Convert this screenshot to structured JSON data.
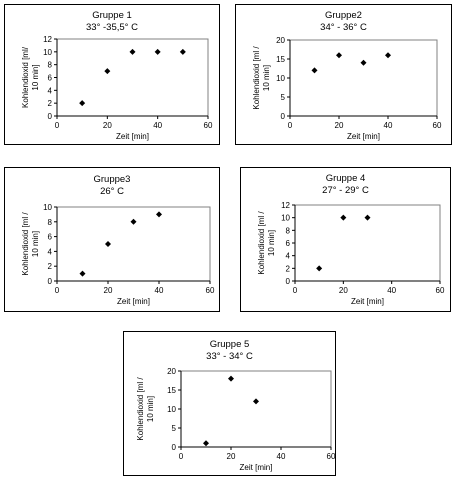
{
  "chart_data": [
    {
      "type": "scatter",
      "title": "Gruppe 1",
      "subtitle": "33° -35,5° C",
      "xlabel": "Zeit [min]",
      "ylabel": "Kohlendioxid [ml/ 10 min]",
      "xlim": [
        0,
        60
      ],
      "ylim": [
        0,
        12
      ],
      "xticks": [
        0,
        20,
        40,
        60
      ],
      "yticks": [
        0,
        2,
        4,
        6,
        8,
        10,
        12
      ],
      "x": [
        10,
        20,
        30,
        40,
        50
      ],
      "y": [
        2,
        7,
        10,
        10,
        10
      ],
      "grid": false,
      "legend": "none"
    },
    {
      "type": "scatter",
      "title": "Gruppe2",
      "subtitle": "34° - 36° C",
      "xlabel": "Zeit [min]",
      "ylabel": "Kohlendioxid [ml / 10 min]",
      "xlim": [
        0,
        60
      ],
      "ylim": [
        0,
        20
      ],
      "xticks": [
        0,
        20,
        40,
        60
      ],
      "yticks": [
        0,
        5,
        10,
        15,
        20
      ],
      "x": [
        10,
        20,
        30,
        40
      ],
      "y": [
        12,
        16,
        14,
        16
      ],
      "grid": false,
      "legend": "none"
    },
    {
      "type": "scatter",
      "title": "Gruppe3",
      "subtitle": "26° C",
      "xlabel": "Zeit [min]",
      "ylabel": "Kohlendioxid [ml / 10 min]",
      "xlim": [
        0,
        60
      ],
      "ylim": [
        0,
        10
      ],
      "xticks": [
        0,
        20,
        40,
        60
      ],
      "yticks": [
        0,
        2,
        4,
        6,
        8,
        10
      ],
      "x": [
        10,
        20,
        30,
        40
      ],
      "y": [
        1,
        5,
        8,
        9
      ],
      "grid": false,
      "legend": "none"
    },
    {
      "type": "scatter",
      "title": "Gruppe 4",
      "subtitle": "27° - 29° C",
      "xlabel": "Zeit [min]",
      "ylabel": "Kohlendioxid [ml / 10 min]",
      "xlim": [
        0,
        60
      ],
      "ylim": [
        0,
        12
      ],
      "xticks": [
        0,
        20,
        40,
        60
      ],
      "yticks": [
        0,
        2,
        4,
        6,
        8,
        10,
        12
      ],
      "x": [
        10,
        20,
        30
      ],
      "y": [
        2,
        10,
        10
      ],
      "grid": false,
      "legend": "none"
    },
    {
      "type": "scatter",
      "title": "Gruppe 5",
      "subtitle": "33° - 34° C",
      "xlabel": "Zeit [min]",
      "ylabel": "Kohlendioxid [ml / 10 min]",
      "xlim": [
        0,
        60
      ],
      "ylim": [
        0,
        20
      ],
      "xticks": [
        0,
        20,
        40,
        60
      ],
      "yticks": [
        0,
        5,
        10,
        15,
        20
      ],
      "x": [
        10,
        20,
        30
      ],
      "y": [
        1,
        18,
        12
      ],
      "grid": false,
      "legend": "none"
    }
  ]
}
